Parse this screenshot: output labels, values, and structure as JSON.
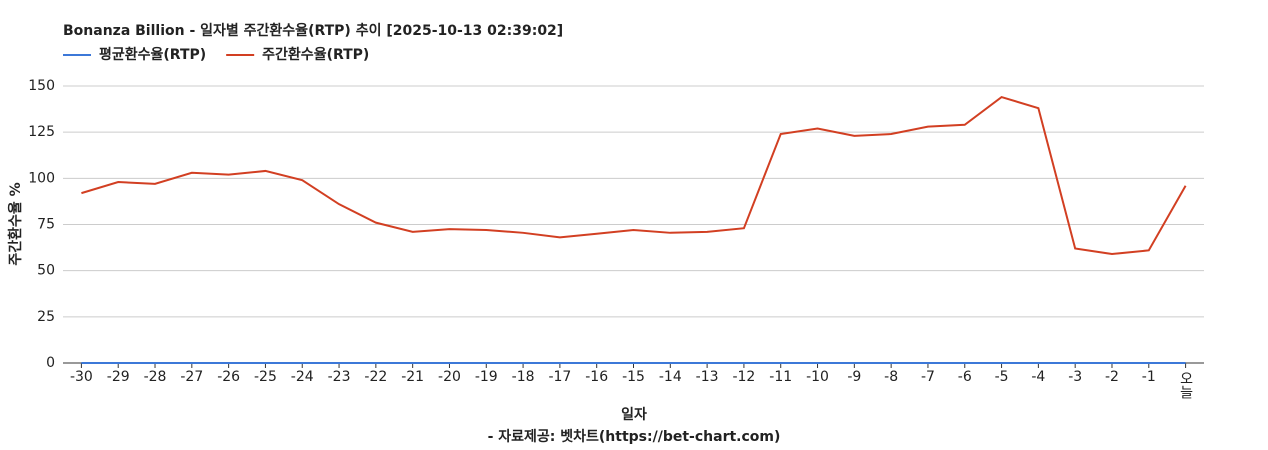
{
  "chart_data": {
    "type": "line",
    "title": "Bonanza Billion - 일자별 주간환수율(RTP) 추이 [2025-10-13 02:39:02]",
    "x_label": "일자",
    "y_label": "주간환수율 %",
    "footer": "- 자료제공: 벳차트(https://bet-chart.com)",
    "categories": [
      "-30",
      "-29",
      "-28",
      "-27",
      "-26",
      "-25",
      "-24",
      "-23",
      "-22",
      "-21",
      "-20",
      "-19",
      "-18",
      "-17",
      "-16",
      "-15",
      "-14",
      "-13",
      "-12",
      "-11",
      "-10",
      "-9",
      "-8",
      "-7",
      "-6",
      "-5",
      "-4",
      "-3",
      "-2",
      "-1",
      "오늘"
    ],
    "series": [
      {
        "name": "평균환수율(RTP)",
        "color": "#3c78d8",
        "values": [
          0,
          0,
          0,
          0,
          0,
          0,
          0,
          0,
          0,
          0,
          0,
          0,
          0,
          0,
          0,
          0,
          0,
          0,
          0,
          0,
          0,
          0,
          0,
          0,
          0,
          0,
          0,
          0,
          0,
          0,
          0
        ]
      },
      {
        "name": "주간환수율(RTP)",
        "color": "#d23f22",
        "values": [
          92,
          98,
          97,
          103,
          102,
          104,
          99,
          86,
          76,
          71,
          72.5,
          72,
          70.5,
          68,
          70,
          72,
          70.5,
          71,
          73,
          124,
          127,
          123,
          124,
          128,
          129,
          144,
          138,
          62,
          59,
          61,
          96
        ]
      }
    ],
    "ylim": [
      0,
      150
    ],
    "yticks": [
      0,
      25,
      50,
      75,
      100,
      125,
      150
    ],
    "grid": true,
    "legend": "top-left"
  }
}
